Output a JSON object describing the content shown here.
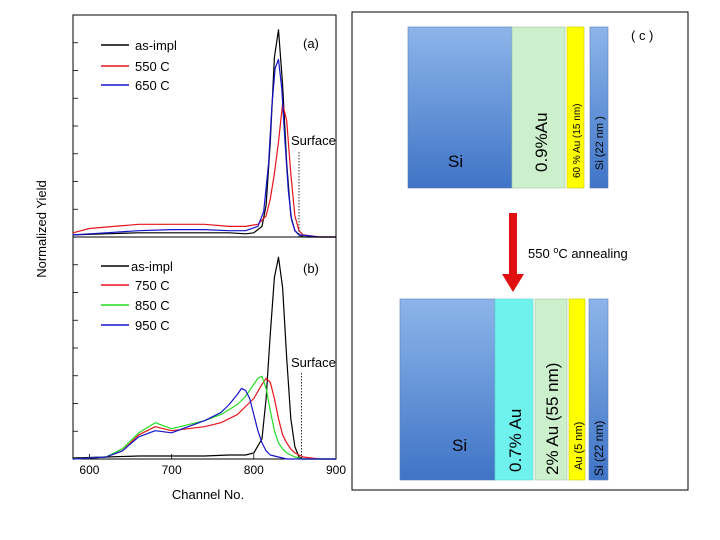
{
  "panels": {
    "a": {
      "label": "(a)",
      "surface_label": "Surface",
      "surface_channel": 855,
      "legend": [
        {
          "name": "as-impl",
          "color": "#000000"
        },
        {
          "name": "550 C",
          "color": "#e8141b"
        },
        {
          "name": "650 C",
          "color": "#1414cc"
        }
      ]
    },
    "b": {
      "label": "(b)",
      "surface_label": "Surface",
      "surface_channel": 858,
      "legend": [
        {
          "name": "as-impl",
          "color": "#000000"
        },
        {
          "name": "750 C",
          "color": "#e8141b"
        },
        {
          "name": "850 C",
          "color": "#22dd22"
        },
        {
          "name": "950 C",
          "color": "#1414cc"
        }
      ]
    },
    "c": {
      "label": "( c )",
      "annealing_label_pre": "550 ",
      "annealing_label_sup": "o",
      "annealing_label_post": "C annealing",
      "before_layers": [
        {
          "label": "Si",
          "color": "#5b8fd6"
        },
        {
          "label": "0.9%Au",
          "color": "#ccf0cc"
        },
        {
          "label": "60 % Au (15 nm)",
          "color": "#ffff00"
        },
        {
          "label": "Si (22 nm )",
          "color": "#5b8fd6"
        }
      ],
      "after_layers": [
        {
          "label": "Si",
          "color": "#5b8fd6"
        },
        {
          "label": "0.7% Au",
          "color": "#6ff2ee"
        },
        {
          "label": "2% Au (55 nm)",
          "color": "#ccf0cc"
        },
        {
          "label": "Au (5 nm)",
          "color": "#ffff00"
        },
        {
          "label": "Si (22 nm)",
          "color": "#5b8fd6"
        }
      ],
      "arrow_color": "#e01010"
    }
  },
  "chart_data": [
    {
      "type": "line",
      "panel": "a",
      "title": "",
      "xlabel": "Channel No.",
      "ylabel": "Normalized Yield",
      "xlim": [
        580,
        900
      ],
      "ylim": [
        0,
        1.05
      ],
      "series": [
        {
          "name": "as-impl",
          "color": "#000000",
          "x": [
            580,
            620,
            660,
            700,
            740,
            770,
            790,
            800,
            810,
            815,
            820,
            825,
            830,
            835,
            840,
            845,
            850,
            855,
            860,
            880,
            900
          ],
          "values": [
            0.01,
            0.015,
            0.02,
            0.02,
            0.02,
            0.02,
            0.015,
            0.02,
            0.05,
            0.15,
            0.45,
            0.85,
            0.98,
            0.72,
            0.35,
            0.1,
            0.03,
            0.01,
            0,
            0,
            0
          ]
        },
        {
          "name": "550 C",
          "color": "#e8141b",
          "x": [
            580,
            600,
            630,
            660,
            700,
            740,
            770,
            790,
            805,
            815,
            820,
            825,
            830,
            835,
            840,
            845,
            850,
            855,
            860,
            880,
            900
          ],
          "values": [
            0.02,
            0.04,
            0.05,
            0.06,
            0.06,
            0.06,
            0.05,
            0.05,
            0.06,
            0.1,
            0.18,
            0.3,
            0.45,
            0.63,
            0.55,
            0.3,
            0.1,
            0.03,
            0.01,
            0,
            0
          ]
        },
        {
          "name": "650 C",
          "color": "#1414cc",
          "x": [
            580,
            620,
            660,
            700,
            740,
            770,
            790,
            805,
            812,
            818,
            822,
            826,
            830,
            834,
            838,
            842,
            846,
            850,
            855,
            880,
            900
          ],
          "values": [
            0.01,
            0.02,
            0.03,
            0.035,
            0.035,
            0.03,
            0.03,
            0.05,
            0.12,
            0.35,
            0.62,
            0.8,
            0.84,
            0.7,
            0.45,
            0.22,
            0.08,
            0.03,
            0.01,
            0,
            0
          ]
        }
      ]
    },
    {
      "type": "line",
      "panel": "b",
      "title": "",
      "xlabel": "Channel No.",
      "ylabel": "Normalized Yield",
      "xlim": [
        580,
        900
      ],
      "ylim": [
        0,
        1.1
      ],
      "xticks": [
        600,
        700,
        800,
        900
      ],
      "series": [
        {
          "name": "as-impl",
          "color": "#000000",
          "x": [
            580,
            620,
            660,
            700,
            740,
            770,
            790,
            800,
            810,
            815,
            820,
            825,
            830,
            835,
            840,
            845,
            850,
            855,
            860,
            880,
            900
          ],
          "values": [
            0.005,
            0.01,
            0.015,
            0.015,
            0.015,
            0.02,
            0.02,
            0.03,
            0.1,
            0.3,
            0.62,
            0.9,
            1.0,
            0.85,
            0.5,
            0.2,
            0.06,
            0.01,
            0,
            0,
            0
          ]
        },
        {
          "name": "750 C",
          "color": "#e8141b",
          "x": [
            580,
            620,
            640,
            660,
            680,
            700,
            720,
            740,
            760,
            780,
            790,
            800,
            810,
            815,
            820,
            825,
            830,
            835,
            840,
            845,
            850,
            860,
            880,
            900
          ],
          "values": [
            0,
            0.01,
            0.04,
            0.12,
            0.16,
            0.14,
            0.15,
            0.16,
            0.18,
            0.22,
            0.26,
            0.3,
            0.37,
            0.4,
            0.38,
            0.3,
            0.2,
            0.12,
            0.08,
            0.05,
            0.03,
            0.01,
            0,
            0
          ]
        },
        {
          "name": "850 C",
          "color": "#22dd22",
          "x": [
            580,
            620,
            640,
            660,
            680,
            700,
            720,
            740,
            760,
            780,
            790,
            800,
            805,
            810,
            815,
            820,
            825,
            830,
            835,
            840,
            850,
            860,
            880,
            900
          ],
          "values": [
            0,
            0.01,
            0.05,
            0.13,
            0.18,
            0.15,
            0.17,
            0.19,
            0.22,
            0.27,
            0.31,
            0.37,
            0.4,
            0.41,
            0.35,
            0.24,
            0.14,
            0.08,
            0.05,
            0.03,
            0.01,
            0,
            0,
            0
          ]
        },
        {
          "name": "950 C",
          "color": "#1414cc",
          "x": [
            580,
            620,
            640,
            660,
            680,
            700,
            720,
            740,
            760,
            770,
            780,
            785,
            790,
            795,
            800,
            805,
            810,
            815,
            820,
            830,
            840,
            860,
            880,
            900
          ],
          "values": [
            0,
            0.01,
            0.04,
            0.11,
            0.14,
            0.13,
            0.16,
            0.19,
            0.23,
            0.27,
            0.32,
            0.35,
            0.34,
            0.3,
            0.22,
            0.14,
            0.08,
            0.04,
            0.02,
            0.01,
            0,
            0,
            0,
            0
          ]
        }
      ]
    }
  ]
}
